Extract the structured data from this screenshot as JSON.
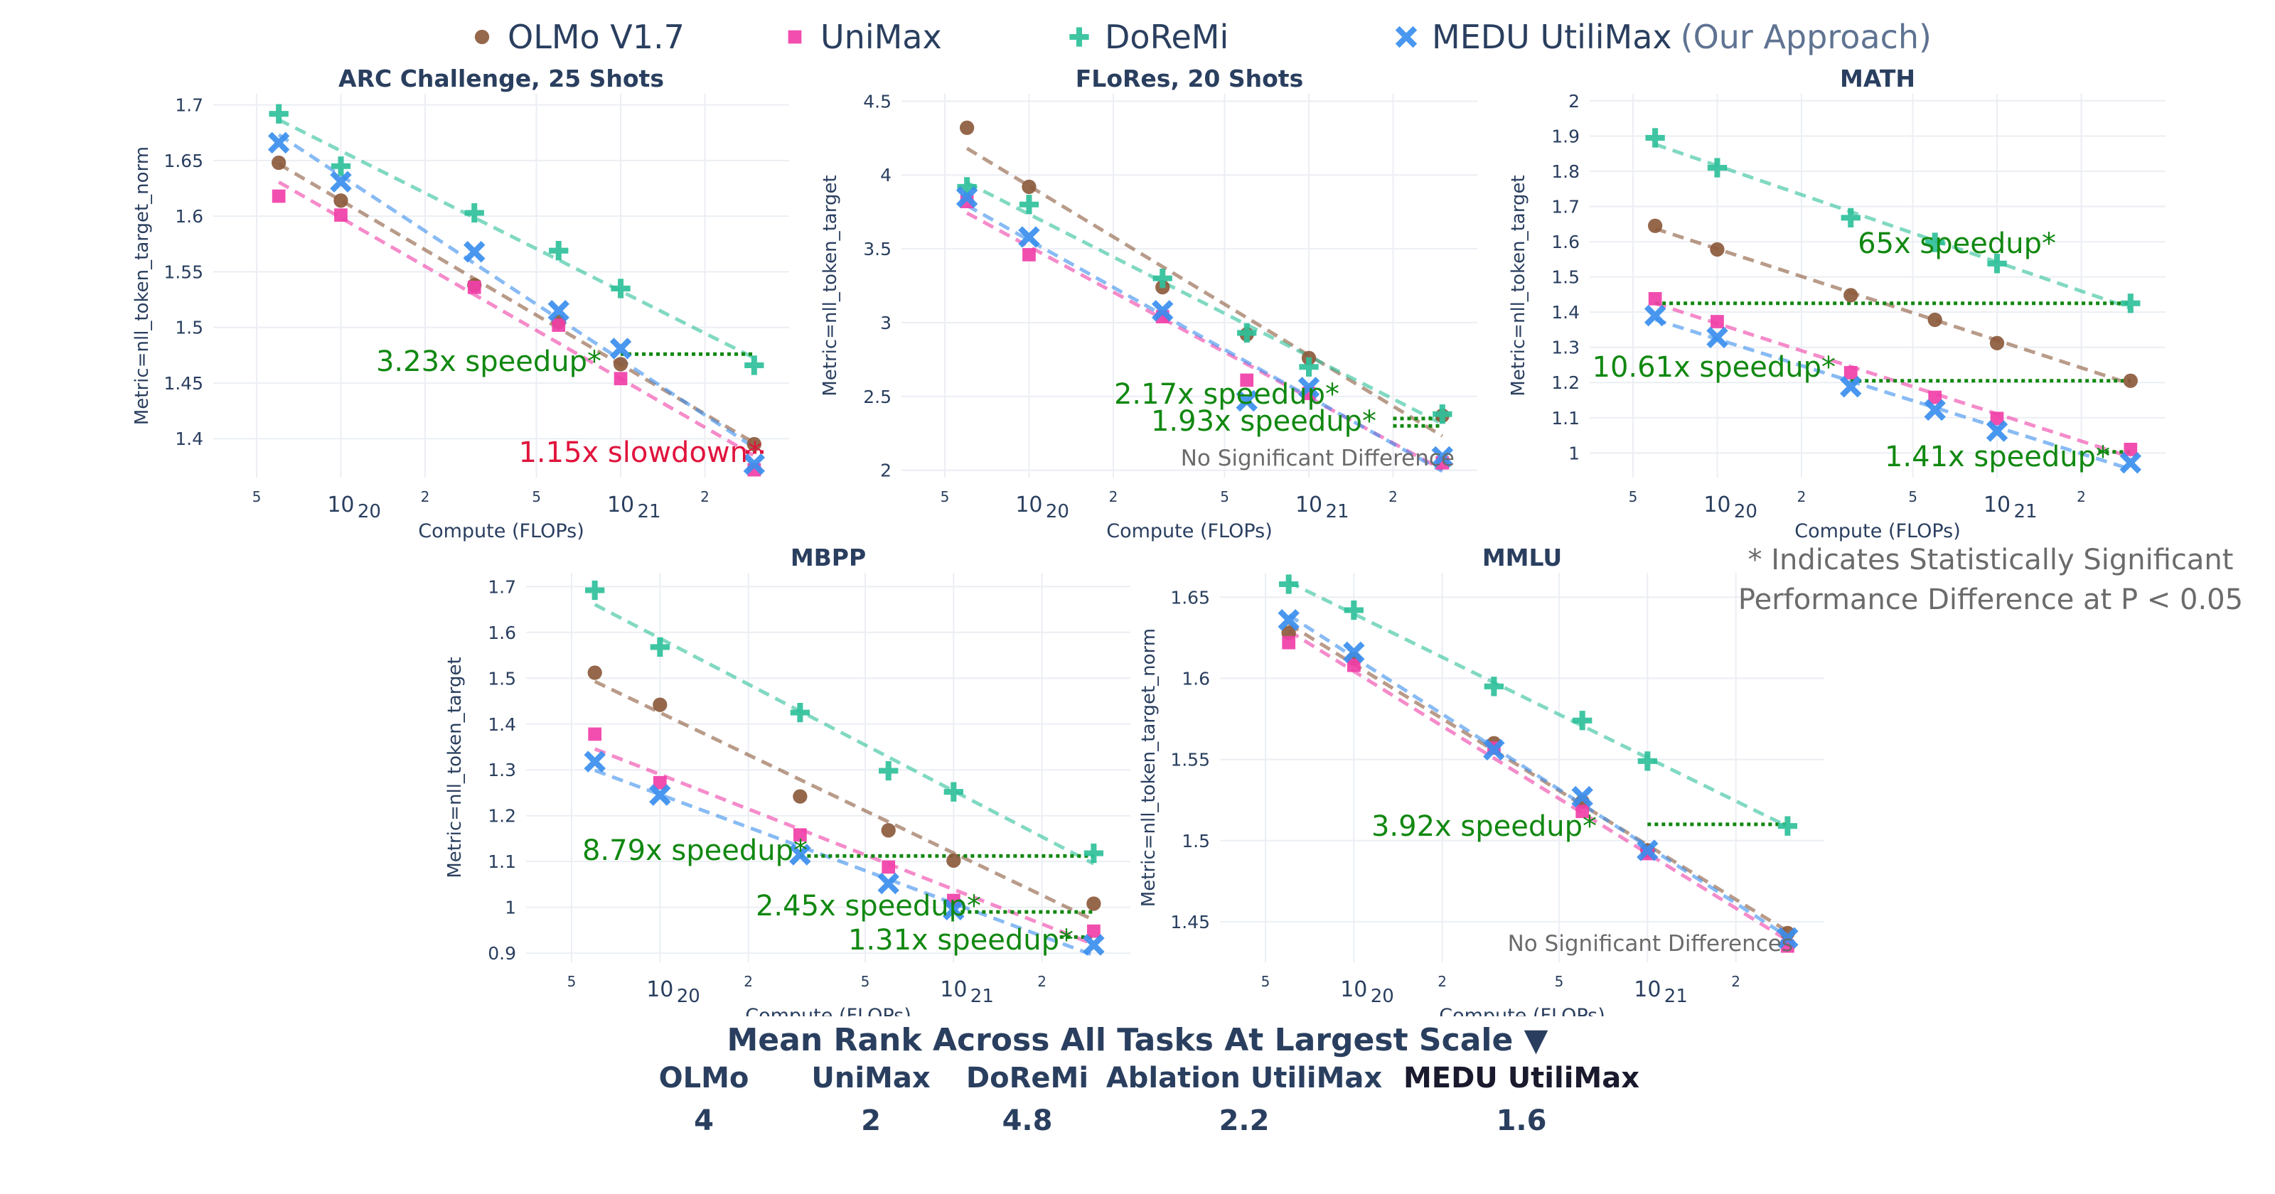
{
  "legend": [
    {
      "name": "OLMo V1.7",
      "suffix": "",
      "color": "#8c5a3c",
      "marker": "circle-icon"
    },
    {
      "name": "UniMax",
      "suffix": "",
      "color": "#f03fa8",
      "marker": "square-icon"
    },
    {
      "name": "DoReMi",
      "suffix": "",
      "color": "#2fc09a",
      "marker": "plus-icon"
    },
    {
      "name": "MEDU UtiliMax",
      "suffix": "(Our Approach)",
      "color": "#3a8eee",
      "marker": "x-icon"
    }
  ],
  "note": "* Indicates Statistically Significant Performance Difference at P < 0.05",
  "rank": {
    "title": "Mean Rank Across All Tasks At Largest Scale ▼",
    "columns": [
      {
        "name": "OLMo",
        "value": "4"
      },
      {
        "name": "UniMax",
        "value": "2"
      },
      {
        "name": "DoReMi",
        "value": "4.8"
      },
      {
        "name": "Ablation UtiliMax",
        "value": "2.2"
      },
      {
        "name": "MEDU UtiliMax",
        "value": "1.6"
      }
    ]
  },
  "chart_data": [
    {
      "type": "scatter",
      "title": "ARC Challenge, 25 Shots",
      "xlabel": "Compute (FLOPs)",
      "ylabel": "Metric=nll_token_target_norm",
      "x_scale": "log",
      "xlim": [
        3.5e+19,
        4e+21
      ],
      "ylim": [
        1.365,
        1.71
      ],
      "yticks": [
        1.4,
        1.45,
        1.5,
        1.55,
        1.6,
        1.65,
        1.7
      ],
      "ytick_labels": [
        "1.4",
        "1.45",
        "1.5",
        "1.55",
        "1.6",
        "1.65",
        "1.7"
      ],
      "x": [
        6e+19,
        1e+20,
        3e+20,
        6e+20,
        1e+21,
        3e+21
      ],
      "series": [
        {
          "name": "OLMo V1.7",
          "values": [
            1.648,
            1.614,
            1.538,
            1.505,
            1.467,
            1.395
          ]
        },
        {
          "name": "UniMax",
          "values": [
            1.618,
            1.601,
            1.536,
            1.502,
            1.454,
            1.372
          ]
        },
        {
          "name": "DoReMi",
          "values": [
            1.692,
            1.645,
            1.603,
            1.569,
            1.535,
            1.466
          ]
        },
        {
          "name": "MEDU UtiliMax",
          "values": [
            1.666,
            1.631,
            1.568,
            1.515,
            1.481,
            1.377
          ]
        }
      ],
      "annotations": [
        {
          "text": "3.23x speedup*",
          "kind": "speedup",
          "y": 1.476,
          "x_from": 1e+21,
          "x_to": 3e+21
        },
        {
          "text": "1.15x slowdown*",
          "kind": "slowdown",
          "y": 1.388,
          "x_from": 2.8e+21,
          "x_to": 3.3e+21
        }
      ]
    },
    {
      "type": "scatter",
      "title": "FLoRes, 20 Shots",
      "xlabel": "Compute (FLOPs)",
      "ylabel": "Metric=nll_token_target",
      "x_scale": "log",
      "xlim": [
        3.5e+19,
        4e+21
      ],
      "ylim": [
        1.95,
        4.55
      ],
      "yticks": [
        2,
        2.5,
        3,
        3.5,
        4,
        4.5
      ],
      "ytick_labels": [
        "2",
        "2.5",
        "3",
        "3.5",
        "4",
        "4.5"
      ],
      "x": [
        6e+19,
        1e+20,
        3e+20,
        6e+20,
        1e+21,
        3e+21
      ],
      "series": [
        {
          "name": "OLMo V1.7",
          "values": [
            4.32,
            3.92,
            3.24,
            2.92,
            2.76,
            2.37
          ]
        },
        {
          "name": "UniMax",
          "values": [
            3.82,
            3.46,
            3.04,
            2.61,
            2.52,
            2.05
          ]
        },
        {
          "name": "DoReMi",
          "values": [
            3.92,
            3.8,
            3.3,
            2.93,
            2.7,
            2.38
          ]
        },
        {
          "name": "MEDU UtiliMax",
          "values": [
            3.85,
            3.58,
            3.08,
            2.47,
            2.56,
            2.09
          ]
        }
      ],
      "annotations": [
        {
          "text": "2.17x speedup*",
          "kind": "speedup",
          "y": 2.35,
          "x_from": 2e+21,
          "x_to": 3e+21
        },
        {
          "text": "1.93x speedup*",
          "kind": "speedup",
          "y": 2.3,
          "x_from": 2e+21,
          "x_to": 3e+21
        },
        {
          "text": "No Significant Difference",
          "kind": "note",
          "y": 2.05
        }
      ]
    },
    {
      "type": "scatter",
      "title": "MATH",
      "xlabel": "Compute (FLOPs)",
      "ylabel": "Metric=nll_token_target",
      "x_scale": "log",
      "xlim": [
        3.5e+19,
        4e+21
      ],
      "ylim": [
        0.93,
        2.02
      ],
      "yticks": [
        1,
        1.1,
        1.2,
        1.3,
        1.4,
        1.5,
        1.6,
        1.7,
        1.8,
        1.9,
        2
      ],
      "ytick_labels": [
        "1",
        "1.1",
        "1.2",
        "1.3",
        "1.4",
        "1.5",
        "1.6",
        "1.7",
        "1.8",
        "1.9",
        "2"
      ],
      "x": [
        6e+19,
        1e+20,
        3e+20,
        6e+20,
        1e+21,
        3e+21
      ],
      "series": [
        {
          "name": "OLMo V1.7",
          "values": [
            1.645,
            1.578,
            1.448,
            1.378,
            1.312,
            1.205
          ]
        },
        {
          "name": "UniMax",
          "values": [
            1.438,
            1.373,
            1.228,
            1.158,
            1.098,
            1.01
          ]
        },
        {
          "name": "DoReMi",
          "values": [
            1.895,
            1.81,
            1.668,
            1.598,
            1.538,
            1.425
          ]
        },
        {
          "name": "MEDU UtiliMax",
          "values": [
            1.39,
            1.328,
            1.188,
            1.122,
            1.062,
            0.972
          ]
        }
      ],
      "annotations": [
        {
          "text": "65x speedup*",
          "kind": "speedup",
          "y": 1.425,
          "x_from": 6e+19,
          "x_to": 3e+21
        },
        {
          "text": "10.61x speedup*",
          "kind": "speedup",
          "y": 1.205,
          "x_from": 3e+20,
          "x_to": 3e+21
        },
        {
          "text": "1.41x speedup*",
          "kind": "speedup",
          "y": 1.003,
          "x_from": 2.3e+21,
          "x_to": 3e+21
        }
      ]
    },
    {
      "type": "scatter",
      "title": "MBPP",
      "xlabel": "Compute (FLOPs)",
      "ylabel": "Metric=nll_token_target",
      "x_scale": "log",
      "xlim": [
        3.5e+19,
        4e+21
      ],
      "ylim": [
        0.88,
        1.73
      ],
      "yticks": [
        0.9,
        1,
        1.1,
        1.2,
        1.3,
        1.4,
        1.5,
        1.6,
        1.7
      ],
      "ytick_labels": [
        "0.9",
        "1",
        "1.1",
        "1.2",
        "1.3",
        "1.4",
        "1.5",
        "1.6",
        "1.7"
      ],
      "x": [
        6e+19,
        1e+20,
        3e+20,
        6e+20,
        1e+21,
        3e+21
      ],
      "series": [
        {
          "name": "OLMo V1.7",
          "values": [
            1.512,
            1.442,
            1.242,
            1.168,
            1.102,
            1.008
          ]
        },
        {
          "name": "UniMax",
          "values": [
            1.378,
            1.272,
            1.158,
            1.088,
            1.015,
            0.948
          ]
        },
        {
          "name": "DoReMi",
          "values": [
            1.692,
            1.568,
            1.425,
            1.298,
            1.252,
            1.118
          ]
        },
        {
          "name": "MEDU UtiliMax",
          "values": [
            1.318,
            1.245,
            1.115,
            1.052,
            0.995,
            0.918
          ]
        }
      ],
      "annotations": [
        {
          "text": "8.79x speedup*",
          "kind": "speedup",
          "y": 1.112,
          "x_from": 3e+20,
          "x_to": 3e+21
        },
        {
          "text": "2.45x speedup*",
          "kind": "speedup",
          "y": 0.99,
          "x_from": 1e+21,
          "x_to": 3e+21
        },
        {
          "text": "1.31x speedup*",
          "kind": "speedup",
          "y": 0.935,
          "x_from": 2.3e+21,
          "x_to": 3e+21
        }
      ]
    },
    {
      "type": "scatter",
      "title": "MMLU",
      "xlabel": "Compute (FLOPs)",
      "ylabel": "Metric=nll_token_target_norm",
      "x_scale": "log",
      "xlim": [
        3.5e+19,
        4e+21
      ],
      "ylim": [
        1.425,
        1.665
      ],
      "yticks": [
        1.45,
        1.5,
        1.55,
        1.6,
        1.65
      ],
      "ytick_labels": [
        "1.45",
        "1.5",
        "1.55",
        "1.6",
        "1.65"
      ],
      "x": [
        6e+19,
        1e+20,
        3e+20,
        6e+20,
        1e+21,
        3e+21
      ],
      "series": [
        {
          "name": "OLMo V1.7",
          "values": [
            1.628,
            1.612,
            1.56,
            1.524,
            1.494,
            1.443
          ]
        },
        {
          "name": "UniMax",
          "values": [
            1.622,
            1.608,
            1.557,
            1.518,
            1.492,
            1.435
          ]
        },
        {
          "name": "DoReMi",
          "values": [
            1.658,
            1.642,
            1.595,
            1.574,
            1.549,
            1.509
          ]
        },
        {
          "name": "MEDU UtiliMax",
          "values": [
            1.636,
            1.616,
            1.556,
            1.527,
            1.494,
            1.44
          ]
        }
      ],
      "annotations": [
        {
          "text": "3.92x speedup*",
          "kind": "speedup",
          "y": 1.51,
          "x_from": 1e+21,
          "x_to": 3e+21
        },
        {
          "text": "No Significant Differences",
          "kind": "note",
          "y": 1.444
        }
      ]
    }
  ]
}
